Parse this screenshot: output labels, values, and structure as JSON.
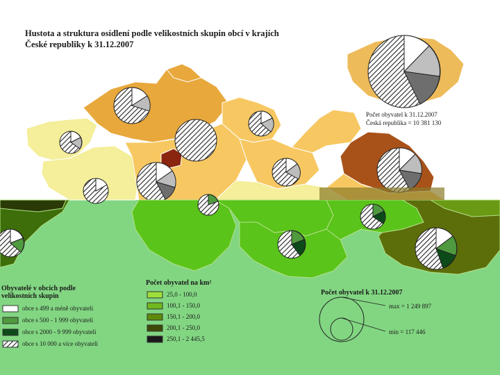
{
  "title_line1": "Hustota a struktura osídlení podle velikostních skupin obcí v krajích",
  "title_line2": "České republiky k 31.12.2007",
  "pop_note_top_line1": "Počet obyvatel k 31.12.2007",
  "pop_note_top_line2": "Česká republika = 10 381 130",
  "density_legend": {
    "heading": "Počet obyvatel na km²",
    "classes": [
      {
        "label": "25,0 - 100,0",
        "color": "#9ee03a"
      },
      {
        "label": "100,1 - 150,0",
        "color": "#6fb81e"
      },
      {
        "label": "150,1 - 200,0",
        "color": "#5e8a0c"
      },
      {
        "label": "200,1 - 250,0",
        "color": "#3d4a06"
      },
      {
        "label": "250,1 - 2 445,5",
        "color": "#1a1a1a"
      }
    ]
  },
  "size_legend": {
    "heading_line1": "Obyvatelé v obcích podle",
    "heading_line2": "velikostních skupin",
    "classes": [
      {
        "label": "obce s 499 a méně obyvateli",
        "color": "#ffffff"
      },
      {
        "label": "obce s 500 - 1 999 obyvateli",
        "color": "#4f9a3e"
      },
      {
        "label": "obce s 2000 - 9 999 obyvateli",
        "color": "#0d4a1a"
      },
      {
        "label": "obce s 10 000 a více obyvateli",
        "color": "hatched"
      }
    ]
  },
  "pop_legend": {
    "heading": "Počet obyvatel k 31.12.2007",
    "max_label": "max = 1 249 897",
    "min_label": "min = 117 446"
  }
}
